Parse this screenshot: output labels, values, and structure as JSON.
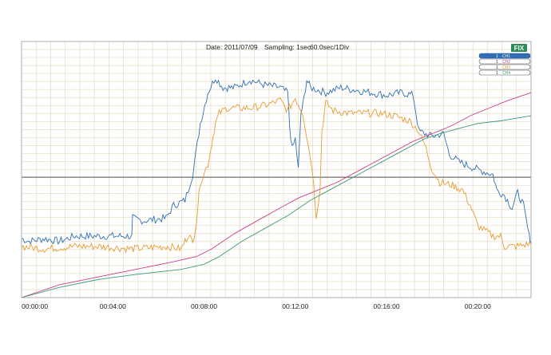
{
  "header": {
    "date_label": "Date: 2011/07/09",
    "sampling_label": "Sampling: 1sec",
    "scale_label": "60.0sec/1Div"
  },
  "fix_button": {
    "label": "FIX",
    "color": "#2e8b57"
  },
  "legend": [
    {
      "num": "1",
      "name": "CH1",
      "color": "#2e6fb5",
      "selected": true
    },
    {
      "num": "1",
      "name": "CH2",
      "color": "#cc3d8a",
      "selected": false
    },
    {
      "num": "1",
      "name": "CH3",
      "color": "#e89a30",
      "selected": false
    },
    {
      "num": "1",
      "name": "CH4",
      "color": "#3a9a7a",
      "selected": false
    }
  ],
  "chart_data": {
    "type": "line",
    "xlim": [
      0,
      1340
    ],
    "ylim": [
      0,
      100
    ],
    "grid": true,
    "legend_placement": "top-right",
    "x_ticks": [
      {
        "value": 0,
        "label": "00:00:00"
      },
      {
        "value": 240,
        "label": "00:04:00"
      },
      {
        "value": 480,
        "label": "00:08:00"
      },
      {
        "value": 720,
        "label": "00:12:00"
      },
      {
        "value": 960,
        "label": "00:16:00"
      },
      {
        "value": 1200,
        "label": "00:20:00"
      }
    ],
    "reference_line": 47,
    "series": [
      {
        "name": "CH1",
        "color": "#2e6fb5",
        "points": [
          [
            0,
            23
          ],
          [
            20,
            22
          ],
          [
            60,
            23
          ],
          [
            100,
            22
          ],
          [
            140,
            24
          ],
          [
            200,
            24
          ],
          [
            290,
            24
          ],
          [
            292,
            31
          ],
          [
            320,
            30
          ],
          [
            380,
            31
          ],
          [
            400,
            36
          ],
          [
            430,
            38
          ],
          [
            450,
            48
          ],
          [
            470,
            68
          ],
          [
            490,
            80
          ],
          [
            510,
            86
          ],
          [
            530,
            82
          ],
          [
            560,
            82
          ],
          [
            600,
            85
          ],
          [
            640,
            83
          ],
          [
            680,
            82
          ],
          [
            700,
            80
          ],
          [
            705,
            67
          ],
          [
            712,
            58
          ],
          [
            720,
            62
          ],
          [
            728,
            50
          ],
          [
            735,
            72
          ],
          [
            740,
            75
          ],
          [
            750,
            85
          ],
          [
            760,
            82
          ],
          [
            800,
            80
          ],
          [
            840,
            82
          ],
          [
            880,
            81
          ],
          [
            920,
            80
          ],
          [
            960,
            79
          ],
          [
            1000,
            80
          ],
          [
            1030,
            79
          ],
          [
            1045,
            65
          ],
          [
            1060,
            64
          ],
          [
            1080,
            63
          ],
          [
            1110,
            64
          ],
          [
            1125,
            56
          ],
          [
            1150,
            53
          ],
          [
            1200,
            50
          ],
          [
            1240,
            48
          ],
          [
            1250,
            42
          ],
          [
            1270,
            40
          ],
          [
            1290,
            35
          ],
          [
            1305,
            41
          ],
          [
            1320,
            36
          ],
          [
            1335,
            24
          ],
          [
            1340,
            22
          ]
        ]
      },
      {
        "name": "CH2",
        "color": "#cc3d8a",
        "points": [
          [
            0,
            0
          ],
          [
            100,
            5
          ],
          [
            200,
            8
          ],
          [
            300,
            11
          ],
          [
            400,
            14
          ],
          [
            460,
            16
          ],
          [
            500,
            19
          ],
          [
            560,
            25
          ],
          [
            620,
            30
          ],
          [
            680,
            35
          ],
          [
            730,
            39
          ],
          [
            780,
            42
          ],
          [
            830,
            45
          ],
          [
            880,
            49
          ],
          [
            930,
            53
          ],
          [
            980,
            57
          ],
          [
            1030,
            61
          ],
          [
            1080,
            64
          ],
          [
            1130,
            67
          ],
          [
            1180,
            71
          ],
          [
            1230,
            74
          ],
          [
            1280,
            77
          ],
          [
            1340,
            80
          ]
        ]
      },
      {
        "name": "CH3",
        "color": "#e89a30",
        "points": [
          [
            0,
            20
          ],
          [
            60,
            19
          ],
          [
            140,
            20
          ],
          [
            200,
            20
          ],
          [
            290,
            19
          ],
          [
            380,
            20
          ],
          [
            420,
            19
          ],
          [
            430,
            22
          ],
          [
            440,
            25
          ],
          [
            450,
            21
          ],
          [
            460,
            30
          ],
          [
            470,
            45
          ],
          [
            490,
            52
          ],
          [
            500,
            60
          ],
          [
            510,
            68
          ],
          [
            520,
            72
          ],
          [
            540,
            74
          ],
          [
            600,
            74
          ],
          [
            640,
            75
          ],
          [
            680,
            77
          ],
          [
            700,
            73
          ],
          [
            720,
            78
          ],
          [
            740,
            72
          ],
          [
            765,
            50
          ],
          [
            775,
            32
          ],
          [
            785,
            42
          ],
          [
            790,
            65
          ],
          [
            800,
            76
          ],
          [
            820,
            73
          ],
          [
            860,
            72
          ],
          [
            900,
            72
          ],
          [
            940,
            72
          ],
          [
            980,
            71
          ],
          [
            1020,
            69
          ],
          [
            1040,
            66
          ],
          [
            1060,
            60
          ],
          [
            1080,
            50
          ],
          [
            1100,
            45
          ],
          [
            1130,
            44
          ],
          [
            1160,
            42
          ],
          [
            1180,
            36
          ],
          [
            1200,
            28
          ],
          [
            1220,
            26
          ],
          [
            1240,
            24
          ],
          [
            1260,
            24
          ],
          [
            1270,
            20
          ],
          [
            1300,
            20
          ],
          [
            1340,
            21
          ]
        ]
      },
      {
        "name": "CH4",
        "color": "#3a9a7a",
        "points": [
          [
            0,
            0
          ],
          [
            100,
            4
          ],
          [
            200,
            7
          ],
          [
            300,
            9
          ],
          [
            420,
            11
          ],
          [
            480,
            13
          ],
          [
            520,
            16
          ],
          [
            580,
            22
          ],
          [
            640,
            27
          ],
          [
            700,
            32
          ],
          [
            760,
            38
          ],
          [
            810,
            42
          ],
          [
            860,
            46
          ],
          [
            910,
            50
          ],
          [
            960,
            54
          ],
          [
            1010,
            58
          ],
          [
            1060,
            62
          ],
          [
            1100,
            64
          ],
          [
            1150,
            66
          ],
          [
            1200,
            68
          ],
          [
            1260,
            69
          ],
          [
            1300,
            70
          ],
          [
            1340,
            71
          ]
        ]
      }
    ]
  }
}
